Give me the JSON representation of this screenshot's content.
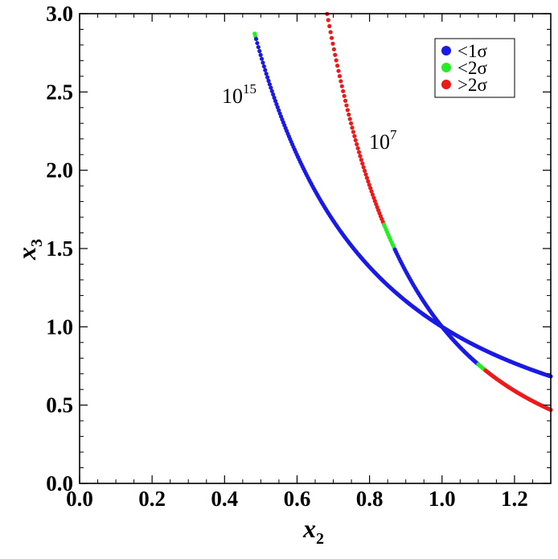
{
  "chart_data": {
    "type": "scatter",
    "xlabel": "x",
    "xlabel_sub": "2",
    "ylabel": "x",
    "ylabel_sub": "3",
    "xlim": [
      0.0,
      1.3
    ],
    "ylim": [
      0.0,
      3.0
    ],
    "xticks": [
      0.0,
      0.2,
      0.4,
      0.6,
      0.8,
      1.0,
      1.2
    ],
    "xtick_labels": [
      "0.0",
      "0.2",
      "0.4",
      "0.6",
      "0.8",
      "1.0",
      "1.2"
    ],
    "yticks": [
      0.0,
      0.5,
      1.0,
      1.5,
      2.0,
      2.5,
      3.0
    ],
    "ytick_labels": [
      "0.0",
      "0.5",
      "1.0",
      "1.5",
      "2.0",
      "2.5",
      "3.0"
    ],
    "legend_placement": "top-right",
    "legend": [
      {
        "label": "<1σ",
        "color": "#1a1ae6"
      },
      {
        "label": "<2σ",
        "color": "#22ee22"
      },
      {
        "label": ">2σ",
        "color": "#ee1a1a"
      }
    ],
    "curves": [
      {
        "label_base": "10",
        "label_exp": "15",
        "description": "x3 = 1/x2^1.45",
        "exponent": 1.45,
        "segments": [
          {
            "x_from": 0.483,
            "x_to": 0.487,
            "status": "<2σ"
          },
          {
            "x_from": 0.487,
            "x_to": 1.3,
            "status": "<1σ"
          }
        ]
      },
      {
        "label_base": "10",
        "label_exp": "7",
        "description": "x3 = 1/x2^2.88",
        "exponent": 2.88,
        "segments": [
          {
            "x_from": 0.683,
            "x_to": 0.84,
            "status": ">2σ"
          },
          {
            "x_from": 0.84,
            "x_to": 0.87,
            "status": "<2σ"
          },
          {
            "x_from": 0.87,
            "x_to": 1.1,
            "status": "<1σ"
          },
          {
            "x_from": 1.1,
            "x_to": 1.12,
            "status": "<2σ"
          },
          {
            "x_from": 1.12,
            "x_to": 1.3,
            "status": ">2σ"
          }
        ]
      }
    ]
  }
}
